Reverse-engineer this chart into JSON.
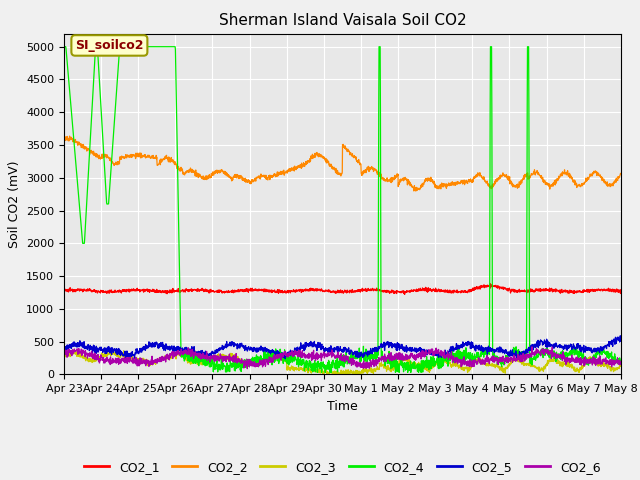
{
  "title": "Sherman Island Vaisala Soil CO2",
  "ylabel": "Soil CO2 (mV)",
  "xlabel": "Time",
  "annotation": "SI_soilco2",
  "ylim": [
    0,
    5200
  ],
  "yticks": [
    0,
    500,
    1000,
    1500,
    2000,
    2500,
    3000,
    3500,
    4000,
    4500,
    5000
  ],
  "xtick_labels": [
    "Apr 23",
    "Apr 24",
    "Apr 25",
    "Apr 26",
    "Apr 27",
    "Apr 28",
    "Apr 29",
    "Apr 30",
    "May 1",
    "May 2",
    "May 3",
    "May 4",
    "May 5",
    "May 6",
    "May 7",
    "May 8"
  ],
  "colors": {
    "CO2_1": "#ff0000",
    "CO2_2": "#ff8800",
    "CO2_3": "#cccc00",
    "CO2_4": "#00ee00",
    "CO2_5": "#0000cc",
    "CO2_6": "#aa00aa"
  },
  "fig_bg": "#f0f0f0",
  "plot_bg": "#e8e8e8",
  "title_fontsize": 11,
  "axis_fontsize": 9,
  "tick_fontsize": 8,
  "legend_fontsize": 9
}
